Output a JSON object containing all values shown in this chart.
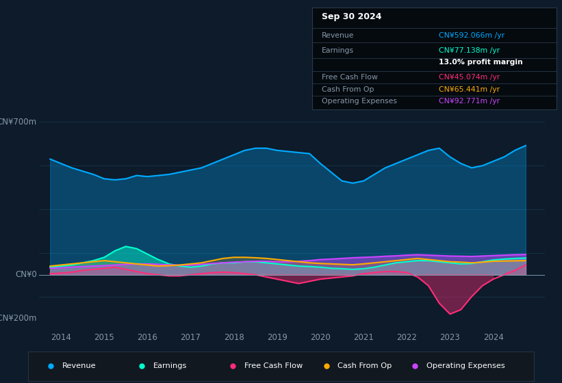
{
  "bg_color": "#0d1b2a",
  "plot_bg_color": "#0d1b2a",
  "ylabel_700": "CN¥700m",
  "ylabel_0": "CN¥0",
  "ylabel_neg200": "-CN¥200m",
  "xlim_start": 2013.5,
  "xlim_end": 2025.2,
  "xtick_labels": [
    "2014",
    "2015",
    "2016",
    "2017",
    "2018",
    "2019",
    "2020",
    "2021",
    "2022",
    "2023",
    "2024"
  ],
  "xtick_positions": [
    2014,
    2015,
    2016,
    2017,
    2018,
    2019,
    2020,
    2021,
    2022,
    2023,
    2024
  ],
  "revenue_color": "#00aaff",
  "earnings_color": "#00ffcc",
  "fcf_color": "#ff2d78",
  "cashfromop_color": "#ffaa00",
  "opex_color": "#cc44ff",
  "tooltip_title": "Sep 30 2024",
  "tooltip_revenue": "CN¥592.066m /yr",
  "tooltip_earnings": "CN¥77.138m /yr",
  "tooltip_margin": "13.0% profit margin",
  "tooltip_fcf": "CN¥45.074m /yr",
  "tooltip_cashop": "CN¥65.441m /yr",
  "tooltip_opex": "CN¥92.771m /yr",
  "revenue_x": [
    2013.75,
    2014.0,
    2014.25,
    2014.5,
    2014.75,
    2015.0,
    2015.25,
    2015.5,
    2015.75,
    2016.0,
    2016.25,
    2016.5,
    2016.75,
    2017.0,
    2017.25,
    2017.5,
    2017.75,
    2018.0,
    2018.25,
    2018.5,
    2018.75,
    2019.0,
    2019.25,
    2019.5,
    2019.75,
    2020.0,
    2020.25,
    2020.5,
    2020.75,
    2021.0,
    2021.25,
    2021.5,
    2021.75,
    2022.0,
    2022.25,
    2022.5,
    2022.75,
    2023.0,
    2023.25,
    2023.5,
    2023.75,
    2024.0,
    2024.25,
    2024.5,
    2024.75
  ],
  "revenue_y": [
    530,
    510,
    490,
    475,
    460,
    440,
    435,
    440,
    455,
    450,
    455,
    460,
    470,
    480,
    490,
    510,
    530,
    550,
    570,
    580,
    580,
    570,
    565,
    560,
    555,
    510,
    470,
    430,
    420,
    430,
    460,
    490,
    510,
    530,
    550,
    570,
    580,
    540,
    510,
    490,
    500,
    520,
    540,
    570,
    592
  ],
  "earnings_x": [
    2013.75,
    2014.0,
    2014.25,
    2014.5,
    2014.75,
    2015.0,
    2015.25,
    2015.5,
    2015.75,
    2016.0,
    2016.25,
    2016.5,
    2016.75,
    2017.0,
    2017.25,
    2017.5,
    2017.75,
    2018.0,
    2018.25,
    2018.5,
    2018.75,
    2019.0,
    2019.25,
    2019.5,
    2019.75,
    2020.0,
    2020.25,
    2020.5,
    2020.75,
    2021.0,
    2021.25,
    2021.5,
    2021.75,
    2022.0,
    2022.25,
    2022.5,
    2022.75,
    2023.0,
    2023.25,
    2023.5,
    2023.75,
    2024.0,
    2024.25,
    2024.5,
    2024.75
  ],
  "earnings_y": [
    35,
    40,
    45,
    55,
    65,
    80,
    110,
    130,
    120,
    95,
    70,
    50,
    40,
    35,
    40,
    50,
    55,
    55,
    60,
    60,
    55,
    50,
    45,
    40,
    38,
    35,
    30,
    28,
    25,
    28,
    35,
    45,
    55,
    60,
    65,
    65,
    60,
    55,
    50,
    52,
    60,
    68,
    72,
    75,
    77
  ],
  "fcf_x": [
    2013.75,
    2014.0,
    2014.25,
    2014.5,
    2014.75,
    2015.0,
    2015.25,
    2015.5,
    2015.75,
    2016.0,
    2016.25,
    2016.5,
    2016.75,
    2017.0,
    2017.25,
    2017.5,
    2017.75,
    2018.0,
    2018.25,
    2018.5,
    2018.75,
    2019.0,
    2019.25,
    2019.5,
    2019.75,
    2020.0,
    2020.25,
    2020.5,
    2020.75,
    2021.0,
    2021.25,
    2021.5,
    2021.75,
    2022.0,
    2022.25,
    2022.5,
    2022.75,
    2023.0,
    2023.25,
    2023.5,
    2023.75,
    2024.0,
    2024.25,
    2024.5,
    2024.75
  ],
  "fcf_y": [
    5,
    8,
    12,
    20,
    25,
    30,
    35,
    25,
    15,
    5,
    0,
    -5,
    -5,
    0,
    5,
    10,
    12,
    10,
    5,
    0,
    -10,
    -20,
    -30,
    -40,
    -30,
    -20,
    -15,
    -10,
    -5,
    5,
    10,
    15,
    15,
    10,
    -10,
    -50,
    -130,
    -180,
    -160,
    -100,
    -50,
    -20,
    0,
    20,
    45
  ],
  "cashfromop_x": [
    2013.75,
    2014.0,
    2014.25,
    2014.5,
    2014.75,
    2015.0,
    2015.25,
    2015.5,
    2015.75,
    2016.0,
    2016.25,
    2016.5,
    2016.75,
    2017.0,
    2017.25,
    2017.5,
    2017.75,
    2018.0,
    2018.25,
    2018.5,
    2018.75,
    2019.0,
    2019.25,
    2019.5,
    2019.75,
    2020.0,
    2020.25,
    2020.5,
    2020.75,
    2021.0,
    2021.25,
    2021.5,
    2021.75,
    2022.0,
    2022.25,
    2022.5,
    2022.75,
    2023.0,
    2023.25,
    2023.5,
    2023.75,
    2024.0,
    2024.25,
    2024.5,
    2024.75
  ],
  "cashfromop_y": [
    40,
    45,
    50,
    55,
    60,
    65,
    60,
    55,
    50,
    45,
    40,
    42,
    45,
    50,
    55,
    65,
    75,
    80,
    80,
    78,
    75,
    70,
    65,
    60,
    55,
    52,
    50,
    48,
    46,
    50,
    55,
    60,
    65,
    70,
    75,
    70,
    65,
    60,
    58,
    55,
    58,
    62,
    63,
    64,
    65
  ],
  "opex_x": [
    2013.75,
    2014.0,
    2014.25,
    2014.5,
    2014.75,
    2015.0,
    2015.25,
    2015.5,
    2015.75,
    2016.0,
    2016.25,
    2016.5,
    2016.75,
    2017.0,
    2017.25,
    2017.5,
    2017.75,
    2018.0,
    2018.25,
    2018.5,
    2018.75,
    2019.0,
    2019.25,
    2019.5,
    2019.75,
    2020.0,
    2020.25,
    2020.5,
    2020.75,
    2021.0,
    2021.25,
    2021.5,
    2021.75,
    2022.0,
    2022.25,
    2022.5,
    2022.75,
    2023.0,
    2023.25,
    2023.5,
    2023.75,
    2024.0,
    2024.25,
    2024.5,
    2024.75
  ],
  "opex_y": [
    30,
    32,
    35,
    38,
    40,
    42,
    45,
    48,
    50,
    50,
    48,
    46,
    44,
    45,
    48,
    52,
    55,
    58,
    60,
    62,
    62,
    60,
    60,
    62,
    65,
    70,
    72,
    75,
    78,
    80,
    82,
    85,
    87,
    90,
    92,
    90,
    88,
    86,
    85,
    84,
    86,
    88,
    90,
    92,
    93
  ]
}
